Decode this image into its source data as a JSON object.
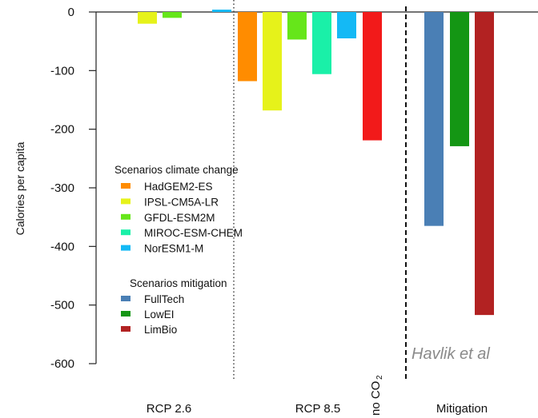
{
  "chart_data": {
    "type": "bar",
    "ylabel": "Calories per capita",
    "ylim": [
      -600,
      0
    ],
    "yticks": [
      0,
      -100,
      -200,
      -300,
      -400,
      -500,
      -600
    ],
    "groups": [
      "RCP 2.6",
      "RCP 8.5",
      "no CO",
      "2",
      "Mitigation"
    ],
    "series": [
      {
        "name": "HadGEM2-ES",
        "color": "#ff8c00",
        "group": "RCP 2.6",
        "value": 0
      },
      {
        "name": "IPSL-CM5A-LR",
        "color": "#e6f21a",
        "group": "RCP 2.6",
        "value": -20
      },
      {
        "name": "GFDL-ESM2M",
        "color": "#66e61a",
        "group": "RCP 2.6",
        "value": -10
      },
      {
        "name": "MIROC-ESM-CHEM",
        "color": "#1af0a8",
        "group": "RCP 2.6",
        "value": 0
      },
      {
        "name": "NorESM1-M",
        "color": "#14b9f5",
        "group": "RCP 2.6",
        "value": 4
      },
      {
        "name": "HadGEM2-ES",
        "color": "#ff8c00",
        "group": "RCP 8.5",
        "value": -118
      },
      {
        "name": "IPSL-CM5A-LR",
        "color": "#e6f21a",
        "group": "RCP 8.5",
        "value": -168
      },
      {
        "name": "GFDL-ESM2M",
        "color": "#66e61a",
        "group": "RCP 8.5",
        "value": -47
      },
      {
        "name": "MIROC-ESM-CHEM",
        "color": "#1af0a8",
        "group": "RCP 8.5",
        "value": -106
      },
      {
        "name": "NorESM1-M",
        "color": "#14b9f5",
        "group": "RCP 8.5",
        "value": -45
      },
      {
        "name": "no CO2",
        "color": "#f21a1a",
        "group": "RCP 8.5",
        "value": -219
      },
      {
        "name": "FullTech",
        "color": "#4a7fb5",
        "group": "Mitigation",
        "value": -365
      },
      {
        "name": "LowEI",
        "color": "#149614",
        "group": "Mitigation",
        "value": -229
      },
      {
        "name": "LimBio",
        "color": "#b22222",
        "group": "Mitigation",
        "value": -517
      }
    ],
    "legend_climate": {
      "title": "Scenarios climate change",
      "items": [
        {
          "label": "HadGEM2-ES",
          "color": "#ff8c00"
        },
        {
          "label": "IPSL-CM5A-LR",
          "color": "#e6f21a"
        },
        {
          "label": "GFDL-ESM2M",
          "color": "#66e61a"
        },
        {
          "label": "MIROC-ESM-CHEM",
          "color": "#1af0a8"
        },
        {
          "label": "NorESM1-M",
          "color": "#14b9f5"
        }
      ]
    },
    "legend_mitigation": {
      "title": "Scenarios mitigation",
      "items": [
        {
          "label": "FullTech",
          "color": "#4a7fb5"
        },
        {
          "label": "LowEI",
          "color": "#149614"
        },
        {
          "label": "LimBio",
          "color": "#b22222"
        }
      ]
    },
    "annotation": "Havlik et al",
    "legend_placement": "left",
    "grid": false
  }
}
